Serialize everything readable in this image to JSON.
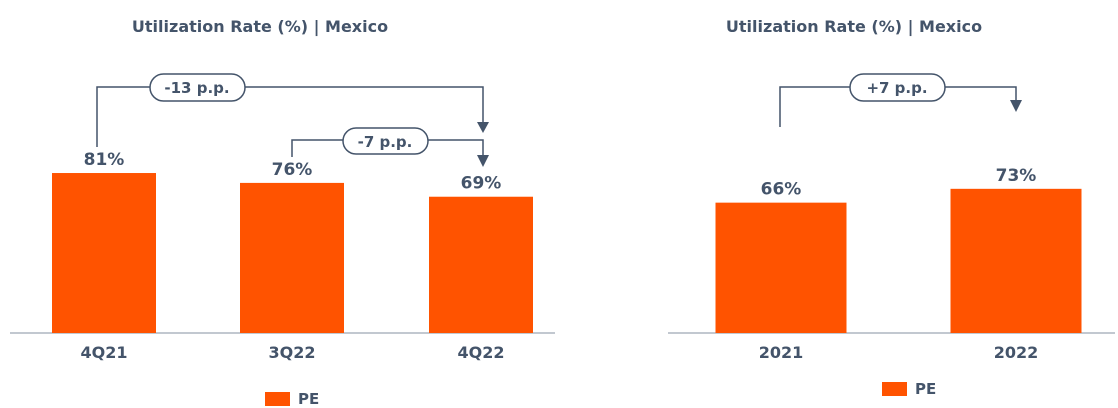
{
  "colors": {
    "bar": "#ff5300",
    "text": "#44546a",
    "axis": "#9ea7b3"
  },
  "chart_data": [
    {
      "type": "bar",
      "title": "Utilization Rate (%)  |  Mexico",
      "categories": [
        "4Q21",
        "3Q22",
        "4Q22"
      ],
      "series": [
        {
          "name": "PE",
          "values": [
            81,
            76,
            69
          ]
        }
      ],
      "value_labels": [
        "81%",
        "76%",
        "69%"
      ],
      "ylim": [
        0,
        100
      ],
      "legend": "bottom",
      "grid": false,
      "annotations": [
        {
          "from": "4Q21",
          "to": "4Q22",
          "label": "-13 p.p."
        },
        {
          "from": "3Q22",
          "to": "4Q22",
          "label": "-7 p.p."
        }
      ]
    },
    {
      "type": "bar",
      "title": "Utilization Rate (%)  |  Mexico",
      "categories": [
        "2021",
        "2022"
      ],
      "series": [
        {
          "name": "PE",
          "values": [
            66,
            73
          ]
        }
      ],
      "value_labels": [
        "66%",
        "73%"
      ],
      "ylim": [
        0,
        100
      ],
      "legend": "bottom",
      "grid": false,
      "annotations": [
        {
          "from": "2021",
          "to": "2022",
          "label": "+7 p.p."
        }
      ]
    }
  ]
}
